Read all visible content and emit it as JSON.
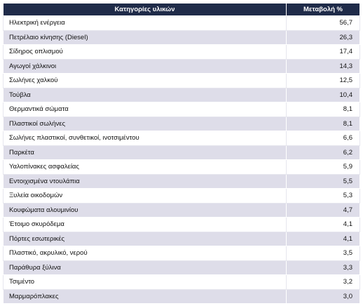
{
  "table": {
    "header": [
      "Κατηγορίες υλικών",
      "Μεταβολή %"
    ],
    "rows": [
      [
        "Ηλεκτρική ενέργεια",
        "56,7"
      ],
      [
        "Πετρέλαιο κίνησης (Diesel)",
        "26,3"
      ],
      [
        "Σίδηρος οπλισμού",
        "17,4"
      ],
      [
        "Αγωγοί χάλκινοι",
        "14,3"
      ],
      [
        "Σωλήνες χαλκού",
        "12,5"
      ],
      [
        "Τούβλα",
        "10,4"
      ],
      [
        "Θερμαντικά σώματα",
        "8,1"
      ],
      [
        "Πλαστικοί σωλήνες",
        "8,1"
      ],
      [
        "Σωλήνες πλαστικοί, συνθετικοί, ινοτσιμέντου",
        "6,6"
      ],
      [
        "Παρκέτα",
        "6,2"
      ],
      [
        "Υαλοπίνακες ασφαλείας",
        "5,9"
      ],
      [
        "Εντοιχισμένα ντουλάπια",
        "5,5"
      ],
      [
        "Ξυλεία οικοδομών",
        "5,3"
      ],
      [
        "Κουφώματα αλουμινίου",
        "4,7"
      ],
      [
        "Έτοιμο σκυρόδεμα",
        "4,1"
      ],
      [
        "Πόρτες εσωτερικές",
        "4,1"
      ],
      [
        "Πλαστικό, ακρυλικό, νερού",
        "3,5"
      ],
      [
        "Παράθυρα ξύλινα",
        "3,3"
      ],
      [
        "Τσιμέντο",
        "3,2"
      ],
      [
        "Μαρμαρόπλακες",
        "3,0"
      ]
    ]
  }
}
